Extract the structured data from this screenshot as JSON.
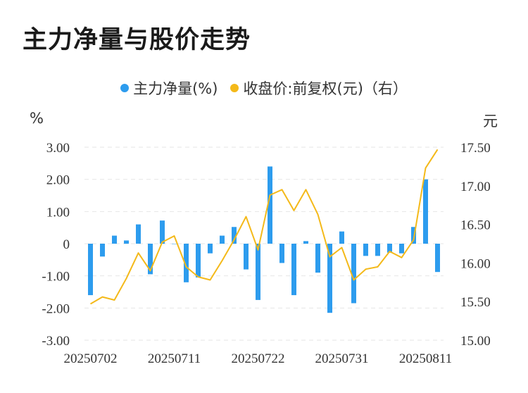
{
  "chart_data": {
    "type": "bar+line",
    "title": "主力净量与股价走势",
    "legend": [
      {
        "label": "主力净量(%)",
        "color": "#2d9cee"
      },
      {
        "label": "收盘价:前复权(元)（右）",
        "color": "#f4b919"
      }
    ],
    "left_axis": {
      "unit": "%",
      "ticks": [
        "3.00",
        "2.00",
        "1.00",
        "0",
        "-1.00",
        "-2.00",
        "-3.00"
      ],
      "ylim": [
        -3,
        3
      ]
    },
    "right_axis": {
      "unit": "元",
      "ticks": [
        "17.50",
        "17.00",
        "16.50",
        "16.00",
        "15.50",
        "15.00"
      ],
      "ylim": [
        15,
        17.5
      ]
    },
    "x_ticks": [
      {
        "label": "20250702",
        "index": 0
      },
      {
        "label": "20250711",
        "index": 7
      },
      {
        "label": "20250722",
        "index": 14
      },
      {
        "label": "20250731",
        "index": 21
      },
      {
        "label": "20250811",
        "index": 28
      }
    ],
    "series": [
      {
        "name": "主力净量(%)",
        "type": "bar",
        "color": "#2d9cee",
        "values": [
          -1.6,
          -0.4,
          0.25,
          0.1,
          0.6,
          -0.95,
          0.72,
          0.0,
          -1.2,
          -1.05,
          -0.3,
          0.25,
          0.52,
          -0.8,
          -1.75,
          2.4,
          -0.6,
          -1.6,
          0.08,
          -0.9,
          -2.15,
          0.38,
          -1.85,
          -0.38,
          -0.38,
          -0.28,
          -0.3,
          0.52,
          2.0,
          -0.88
        ]
      },
      {
        "name": "收盘价:前复权(元)（右）",
        "type": "line",
        "color": "#f4b919",
        "values": [
          15.47,
          15.56,
          15.52,
          15.8,
          16.13,
          15.9,
          16.27,
          16.35,
          15.95,
          15.82,
          15.78,
          16.03,
          16.3,
          16.6,
          16.17,
          16.88,
          16.95,
          16.68,
          16.95,
          16.63,
          16.08,
          16.2,
          15.78,
          15.92,
          15.95,
          16.15,
          16.07,
          16.3,
          17.23,
          17.47
        ]
      }
    ]
  }
}
